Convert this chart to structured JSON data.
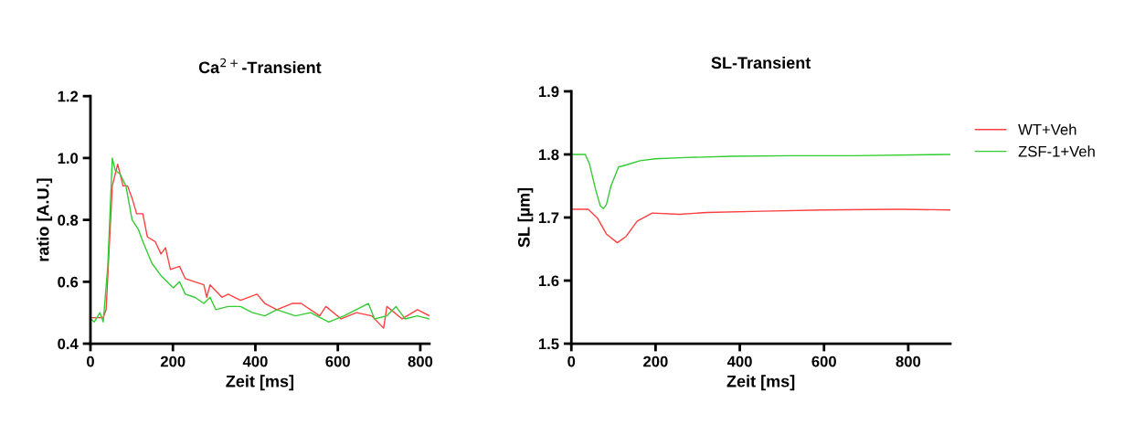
{
  "chart_data": [
    {
      "type": "line",
      "title": "Ca$^{2+}$-Transient",
      "xlabel": "Zeit [ms]",
      "ylabel": "ratio [A.U.]",
      "xlim": [
        0,
        822
      ],
      "xticks": [
        0,
        200,
        400,
        600,
        800
      ],
      "ylim": [
        0.4,
        1.2
      ],
      "yticks": [
        0.4,
        0.6,
        0.8,
        {
          "value": 1,
          "label": "1.0"
        },
        1.2
      ],
      "grid": false,
      "legend": false,
      "series": [
        {
          "color": "#ff4040",
          "x": [
            0,
            31,
            38,
            53,
            66,
            79,
            90,
            101,
            112,
            127,
            138,
            157,
            171,
            182,
            194,
            216,
            230,
            253,
            275,
            282,
            290,
            319,
            334,
            364,
            404,
            423,
            452,
            489,
            511,
            556,
            571,
            608,
            645,
            682,
            711,
            719,
            756,
            793,
            822
          ],
          "values": [
            0.484,
            0.484,
            0.51,
            0.91,
            0.98,
            0.91,
            0.91,
            0.87,
            0.82,
            0.82,
            0.745,
            0.73,
            0.69,
            0.71,
            0.64,
            0.65,
            0.61,
            0.6,
            0.59,
            0.55,
            0.59,
            0.55,
            0.56,
            0.54,
            0.56,
            0.53,
            0.51,
            0.53,
            0.53,
            0.49,
            0.52,
            0.48,
            0.5,
            0.49,
            0.45,
            0.52,
            0.48,
            0.51,
            0.49
          ]
        },
        {
          "color": "#33cc33",
          "x": [
            0,
            9,
            23,
            31,
            42,
            53,
            60,
            71,
            86,
            101,
            116,
            127,
            149,
            171,
            186,
            201,
            216,
            230,
            253,
            275,
            290,
            304,
            334,
            364,
            393,
            423,
            452,
            497,
            534,
            578,
            615,
            674,
            689,
            719,
            741,
            763,
            793,
            822
          ],
          "values": [
            0.48,
            0.47,
            0.5,
            0.47,
            0.65,
            1.0,
            0.96,
            0.95,
            0.91,
            0.8,
            0.77,
            0.73,
            0.66,
            0.62,
            0.6,
            0.58,
            0.6,
            0.56,
            0.55,
            0.53,
            0.55,
            0.51,
            0.52,
            0.52,
            0.5,
            0.49,
            0.51,
            0.49,
            0.5,
            0.47,
            0.49,
            0.53,
            0.48,
            0.49,
            0.52,
            0.48,
            0.49,
            0.48
          ]
        }
      ]
    },
    {
      "type": "line",
      "title": "SL-Transient",
      "xlabel": "Zeit [ms]",
      "ylabel": "SL [µm]",
      "xlim": [
        0,
        900
      ],
      "xticks": [
        0,
        200,
        400,
        600,
        800
      ],
      "ylim": [
        1.5,
        1.9
      ],
      "yticks": [
        1.5,
        1.6,
        1.7,
        1.8,
        1.9
      ],
      "grid": false,
      "legend": "right",
      "series": [
        {
          "name": "WT+Veh",
          "color": "#ff4040",
          "x": [
            0,
            40,
            62,
            83,
            109,
            130,
            156,
            192,
            257,
            322,
            453,
            597,
            778,
            900
          ],
          "values": [
            1.713,
            1.713,
            1.699,
            1.674,
            1.66,
            1.67,
            1.694,
            1.707,
            1.705,
            1.708,
            1.71,
            1.712,
            1.713,
            1.712
          ]
        },
        {
          "name": "ZSF-1+Veh",
          "color": "#33cc33",
          "x": [
            0,
            33,
            43,
            58,
            69,
            76,
            83,
            94,
            112,
            134,
            163,
            199,
            271,
            380,
            525,
            670,
            900
          ],
          "values": [
            1.8,
            1.8,
            1.785,
            1.743,
            1.718,
            1.714,
            1.72,
            1.75,
            1.78,
            1.784,
            1.79,
            1.793,
            1.795,
            1.797,
            1.798,
            1.798,
            1.8
          ]
        }
      ]
    }
  ]
}
